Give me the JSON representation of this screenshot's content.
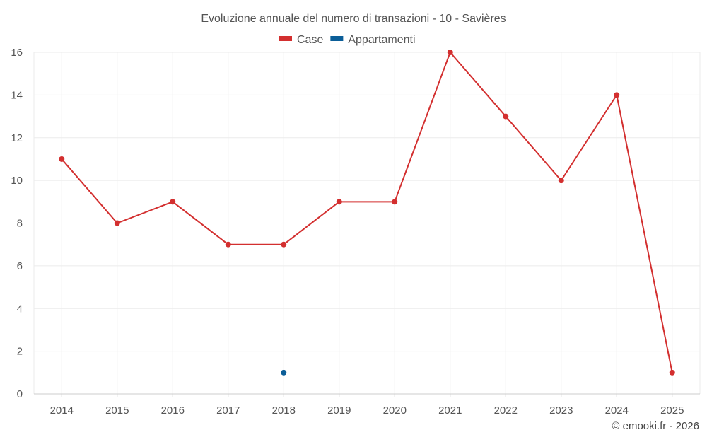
{
  "chart_data": {
    "type": "line",
    "title": "Evoluzione annuale del numero di transazioni - 10 - Savières",
    "xlabel": "",
    "ylabel": "",
    "categories": [
      "2014",
      "2015",
      "2016",
      "2017",
      "2018",
      "2019",
      "2020",
      "2021",
      "2022",
      "2023",
      "2024",
      "2025"
    ],
    "ylim": [
      0,
      16
    ],
    "yticks": [
      0,
      2,
      4,
      6,
      8,
      10,
      12,
      14,
      16
    ],
    "grid": true,
    "legend_position": "top-center",
    "series": [
      {
        "name": "Case",
        "color": "#d32f2f",
        "values": [
          11,
          8,
          9,
          7,
          7,
          9,
          9,
          16,
          13,
          10,
          14,
          1
        ]
      },
      {
        "name": "Appartamenti",
        "color": "#0b5e98",
        "values": [
          null,
          null,
          null,
          null,
          1,
          null,
          null,
          null,
          null,
          null,
          null,
          null
        ]
      }
    ]
  },
  "footer": {
    "credit": "© emooki.fr - 2026"
  }
}
